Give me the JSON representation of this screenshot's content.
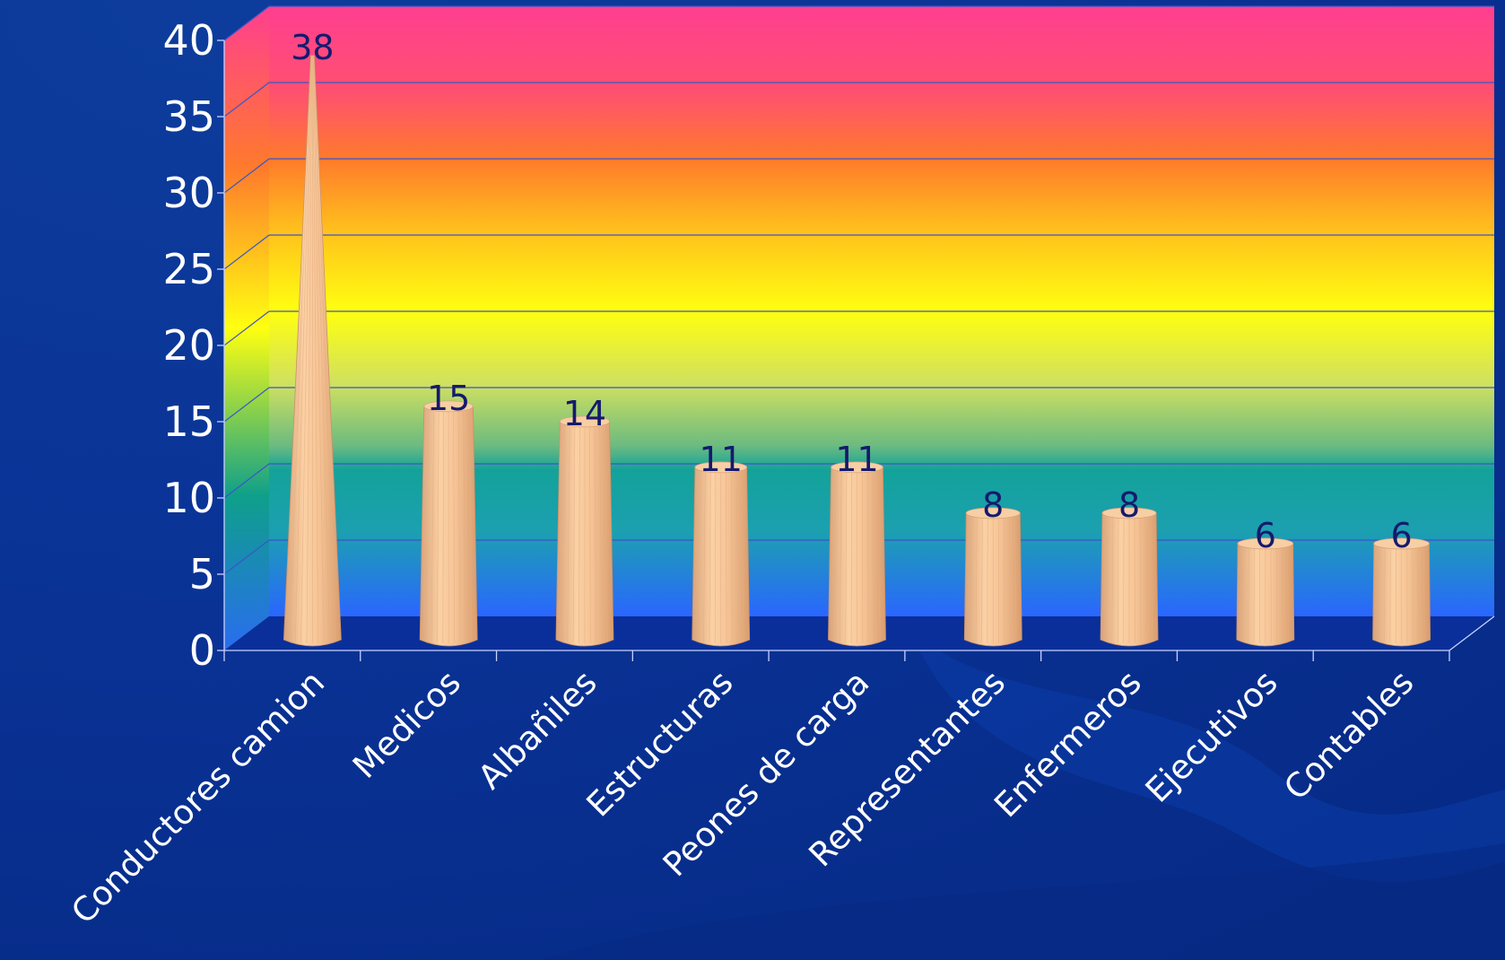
{
  "chart_data": {
    "type": "bar",
    "bar_shape": "cone",
    "categories": [
      "Conductores camion",
      "Medicos",
      "Albañiles",
      "Estructuras",
      "Peones de carga",
      "Representantes",
      "Enfermeros",
      "Ejecutivos",
      "Contables"
    ],
    "values": [
      38,
      15,
      14,
      11,
      11,
      8,
      8,
      6,
      6
    ],
    "ylim": [
      0,
      40
    ],
    "yticks": [
      "0",
      "5",
      "10",
      "15",
      "20",
      "25",
      "30",
      "35",
      "40"
    ],
    "grid": true,
    "legend": "none",
    "title": "",
    "xlabel": "",
    "ylabel": ""
  },
  "colors": {
    "slide_background": "#0a3396",
    "floor": "#0a2f9a",
    "bar_fill": "#f6c597",
    "bar_shadow": "#d89f70",
    "data_label": "#151a6e",
    "tick_label": "#ffffff",
    "wall_gradient_top": "#ff3f90",
    "wall_gradient_orange": "#ff7a2c",
    "wall_gradient_yellow": "#ffff10",
    "wall_gradient_green": "#13a29a",
    "wall_gradient_bottom": "#2a66ff"
  }
}
